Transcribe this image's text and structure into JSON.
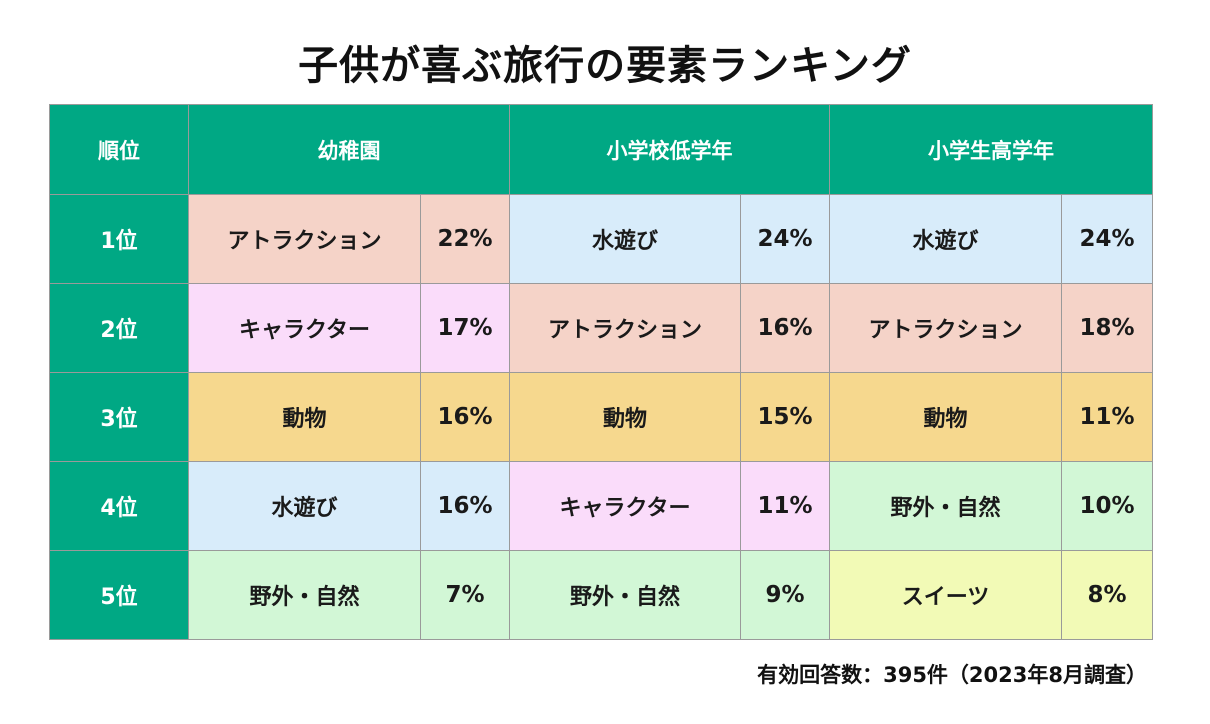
{
  "chart_data": {
    "type": "table",
    "title": "子供が喜ぶ旅行の要素ランキング",
    "header": {
      "rank_label": "順位",
      "groups": [
        "幼稚園",
        "小学校低学年",
        "小学生高学年"
      ]
    },
    "rows": [
      {
        "rank": "1位",
        "cells": [
          {
            "item": "アトラクション",
            "pct": "22%",
            "value": 22,
            "color": "#f5d3c8"
          },
          {
            "item": "水遊び",
            "pct": "24%",
            "value": 24,
            "color": "#d8ecfa"
          },
          {
            "item": "水遊び",
            "pct": "24%",
            "value": 24,
            "color": "#d8ecfa"
          }
        ]
      },
      {
        "rank": "2位",
        "cells": [
          {
            "item": "キャラクター",
            "pct": "17%",
            "value": 17,
            "color": "#fadcfa"
          },
          {
            "item": "アトラクション",
            "pct": "16%",
            "value": 16,
            "color": "#f5d3c8"
          },
          {
            "item": "アトラクション",
            "pct": "18%",
            "value": 18,
            "color": "#f5d3c8"
          }
        ]
      },
      {
        "rank": "3位",
        "cells": [
          {
            "item": "動物",
            "pct": "16%",
            "value": 16,
            "color": "#f6d88e"
          },
          {
            "item": "動物",
            "pct": "15%",
            "value": 15,
            "color": "#f6d88e"
          },
          {
            "item": "動物",
            "pct": "11%",
            "value": 11,
            "color": "#f6d88e"
          }
        ]
      },
      {
        "rank": "4位",
        "cells": [
          {
            "item": "水遊び",
            "pct": "16%",
            "value": 16,
            "color": "#d8ecfa"
          },
          {
            "item": "キャラクター",
            "pct": "11%",
            "value": 11,
            "color": "#fadcfa"
          },
          {
            "item": "野外・自然",
            "pct": "10%",
            "value": 10,
            "color": "#d2f7d6"
          }
        ]
      },
      {
        "rank": "5位",
        "cells": [
          {
            "item": "野外・自然",
            "pct": "7%",
            "value": 7,
            "color": "#d2f7d6"
          },
          {
            "item": "野外・自然",
            "pct": "9%",
            "value": 9,
            "color": "#d2f7d6"
          },
          {
            "item": "スイーツ",
            "pct": "8%",
            "value": 8,
            "color": "#f2fab6"
          }
        ]
      }
    ],
    "note": "有効回答数：395件（2023年8月調査）",
    "colors": {
      "header": "#00a884",
      "header_text": "#ffffff"
    }
  }
}
